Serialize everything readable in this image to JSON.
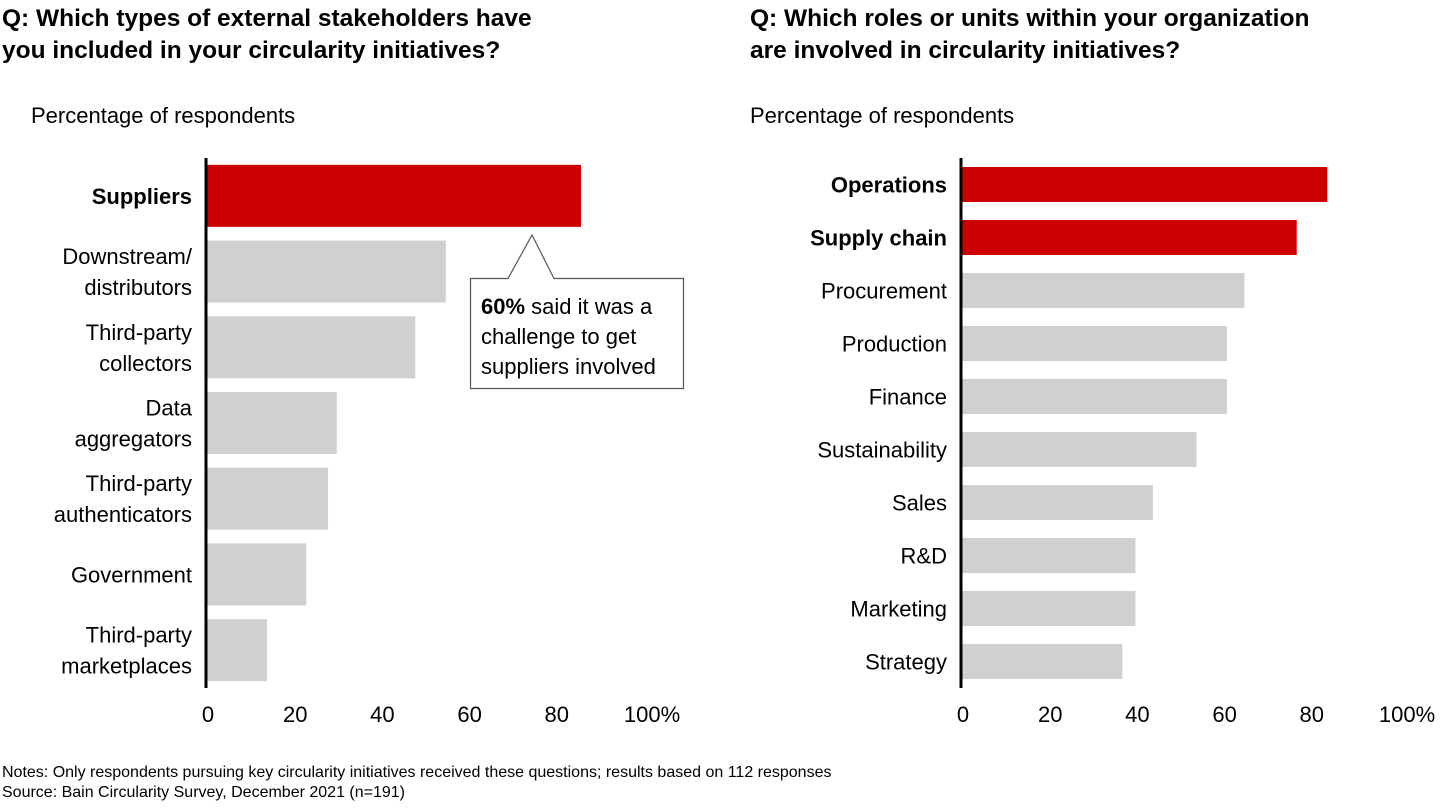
{
  "chart_data": [
    {
      "type": "bar",
      "orientation": "horizontal",
      "title": "Q: Which types of external stakeholders have you included in your circularity initiatives?",
      "title_lines": [
        "Q: Which types of external stakeholders have",
        "you included in your circularity initiatives?"
      ],
      "subtitle": "Percentage of respondents",
      "categories": [
        [
          "Suppliers"
        ],
        [
          "Downstream/",
          "distributors"
        ],
        [
          "Third-party",
          "collectors"
        ],
        [
          "Data",
          "aggregators"
        ],
        [
          "Third-party",
          "authenticators"
        ],
        [
          "Government"
        ],
        [
          "Third-party",
          "marketplaces"
        ]
      ],
      "category_names": [
        "Suppliers",
        "Downstream/distributors",
        "Third-party collectors",
        "Data aggregators",
        "Third-party authenticators",
        "Government",
        "Third-party marketplaces"
      ],
      "values": [
        86,
        55,
        48,
        30,
        28,
        23,
        14
      ],
      "highlighted": [
        true,
        false,
        false,
        false,
        false,
        false,
        false
      ],
      "xlim": [
        0,
        100
      ],
      "ticks": [
        0,
        20,
        40,
        60,
        80,
        100
      ],
      "tick_labels": [
        "0",
        "20",
        "40",
        "60",
        "80",
        "100%"
      ],
      "grid": false,
      "annotation": {
        "bold": "60%",
        "line1_rest": " said it was a",
        "line2": "challenge to get",
        "line3": "suppliers involved",
        "points_to": "Suppliers"
      }
    },
    {
      "type": "bar",
      "orientation": "horizontal",
      "title": "Q: Which roles or units within your organization are involved in circularity initiatives?",
      "title_lines": [
        "Q: Which roles or units within your organization",
        "are involved in circularity initiatives?"
      ],
      "subtitle": "Percentage of respondents",
      "categories": [
        [
          "Operations"
        ],
        [
          "Supply chain"
        ],
        [
          "Procurement"
        ],
        [
          "Production"
        ],
        [
          "Finance"
        ],
        [
          "Sustainability"
        ],
        [
          "Sales"
        ],
        [
          "R&D"
        ],
        [
          "Marketing"
        ],
        [
          "Strategy"
        ]
      ],
      "category_names": [
        "Operations",
        "Supply chain",
        "Procurement",
        "Production",
        "Finance",
        "Sustainability",
        "Sales",
        "R&D",
        "Marketing",
        "Strategy"
      ],
      "values": [
        84,
        77,
        65,
        61,
        61,
        54,
        44,
        40,
        40,
        37
      ],
      "highlighted": [
        true,
        true,
        false,
        false,
        false,
        false,
        false,
        false,
        false,
        false
      ],
      "xlim": [
        0,
        100
      ],
      "ticks": [
        0,
        20,
        40,
        60,
        80,
        100
      ],
      "tick_labels": [
        "0",
        "20",
        "40",
        "60",
        "80",
        "100%"
      ],
      "grid": false
    }
  ],
  "colors": {
    "highlight": "#cc0000",
    "bar": "#d0d0d0",
    "axis": "#000000"
  },
  "footer": {
    "notes": "Notes: Only respondents pursuing key circularity initiatives received these questions; results based on 112 responses",
    "source": "Source: Bain Circularity Survey, December 2021 (n=191)"
  }
}
